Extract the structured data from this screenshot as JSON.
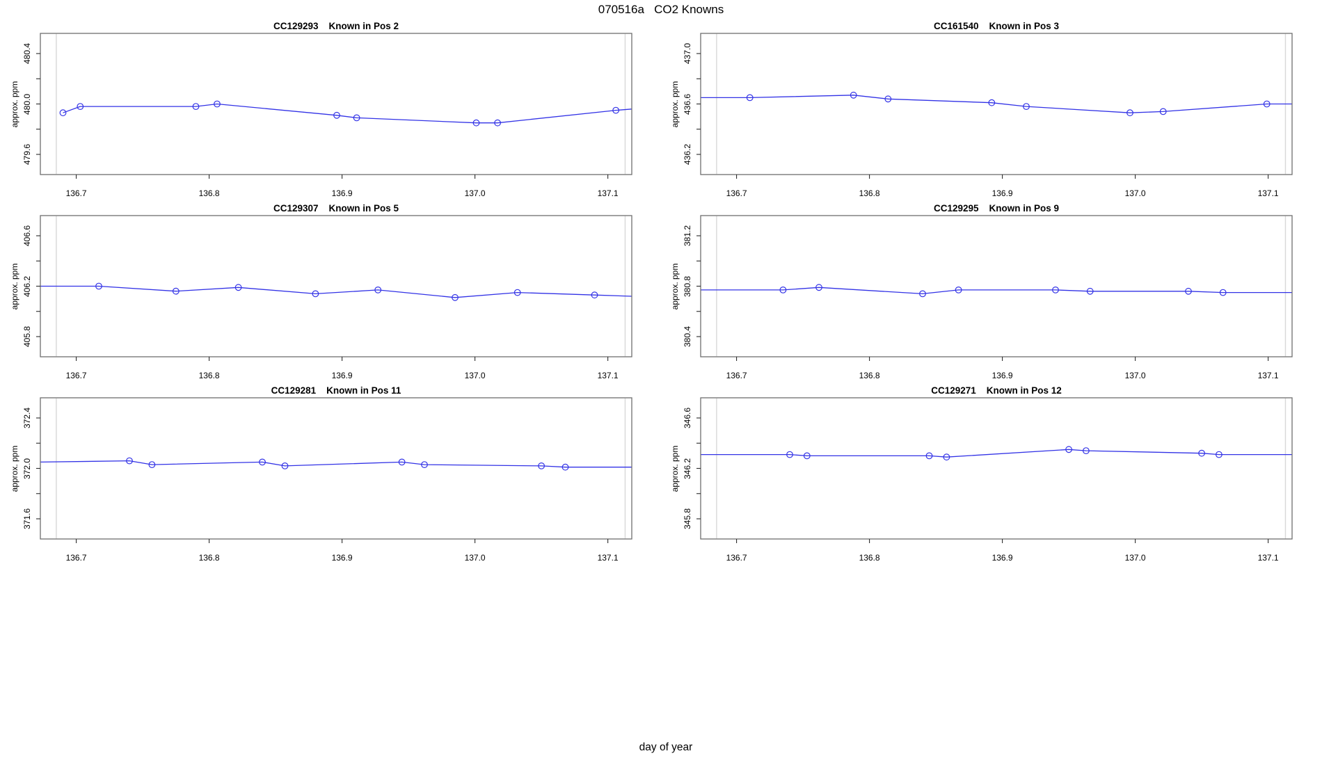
{
  "title": "070516a   CO2 Knowns",
  "xlabel": "day of year",
  "colors": {
    "series_blue": "#3232e6",
    "marker_blue": "#3232e6",
    "run_marker_gray": "#d8d8d8",
    "plot_box_gray": "#6e6e6e",
    "tick_black": "#2a2a2a",
    "text_black": "#000000",
    "background": "#ffffff"
  },
  "chart_data": [
    {
      "id": "pos2",
      "type": "line",
      "title": "CC129293    Known in Pos 2",
      "ylabel": "approx. ppm",
      "xlabel": "day of year",
      "legend": "none",
      "grid": "off",
      "xlim": [
        136.673,
        137.118
      ],
      "ylim": [
        479.44,
        480.56
      ],
      "xticks": [
        {
          "v": 136.7,
          "label": "136.7"
        },
        {
          "v": 136.8,
          "label": "136.8"
        },
        {
          "v": 136.9,
          "label": "136.9"
        },
        {
          "v": 137.0,
          "label": "137.0"
        },
        {
          "v": 137.1,
          "label": "137.1"
        }
      ],
      "yticks": [
        {
          "v": 479.6,
          "label": "479.6"
        },
        {
          "v": 479.8,
          "label": ""
        },
        {
          "v": 480.0,
          "label": "480.0"
        },
        {
          "v": 480.2,
          "label": ""
        },
        {
          "v": 480.4,
          "label": "480.4"
        }
      ],
      "vlines": [
        136.685,
        137.113
      ],
      "points": [
        [
          136.69,
          479.93
        ],
        [
          136.703,
          479.98
        ],
        [
          136.79,
          479.98
        ],
        [
          136.806,
          480.0
        ],
        [
          136.896,
          479.91
        ],
        [
          136.911,
          479.89
        ],
        [
          137.001,
          479.85
        ],
        [
          137.017,
          479.85
        ],
        [
          137.106,
          479.95
        ]
      ],
      "line": [
        [
          136.69,
          479.93
        ],
        [
          136.703,
          479.98
        ],
        [
          136.79,
          479.98
        ],
        [
          136.806,
          480.0
        ],
        [
          136.896,
          479.91
        ],
        [
          136.911,
          479.89
        ],
        [
          137.001,
          479.85
        ],
        [
          137.017,
          479.85
        ],
        [
          137.106,
          479.95
        ],
        [
          137.118,
          479.96
        ]
      ]
    },
    {
      "id": "pos3",
      "type": "line",
      "title": "CC161540    Known in Pos 3",
      "ylabel": "approx. ppm",
      "xlabel": "day of year",
      "legend": "none",
      "grid": "off",
      "xlim": [
        136.673,
        137.118
      ],
      "ylim": [
        436.04,
        437.16
      ],
      "xticks": [
        {
          "v": 136.7,
          "label": "136.7"
        },
        {
          "v": 136.8,
          "label": "136.8"
        },
        {
          "v": 136.9,
          "label": "136.9"
        },
        {
          "v": 137.0,
          "label": "137.0"
        },
        {
          "v": 137.1,
          "label": "137.1"
        }
      ],
      "yticks": [
        {
          "v": 436.2,
          "label": "436.2"
        },
        {
          "v": 436.4,
          "label": ""
        },
        {
          "v": 436.6,
          "label": "436.6"
        },
        {
          "v": 436.8,
          "label": ""
        },
        {
          "v": 437.0,
          "label": "437.0"
        }
      ],
      "vlines": [
        136.685,
        137.113
      ],
      "points": [
        [
          136.71,
          436.65
        ],
        [
          136.788,
          436.67
        ],
        [
          136.814,
          436.64
        ],
        [
          136.892,
          436.61
        ],
        [
          136.918,
          436.58
        ],
        [
          136.996,
          436.53
        ],
        [
          137.021,
          436.54
        ],
        [
          137.099,
          436.6
        ]
      ],
      "line": [
        [
          136.673,
          436.65
        ],
        [
          136.71,
          436.65
        ],
        [
          136.788,
          436.67
        ],
        [
          136.814,
          436.64
        ],
        [
          136.892,
          436.61
        ],
        [
          136.918,
          436.58
        ],
        [
          136.996,
          436.53
        ],
        [
          137.021,
          436.54
        ],
        [
          137.099,
          436.6
        ],
        [
          137.118,
          436.6
        ]
      ]
    },
    {
      "id": "pos5",
      "type": "line",
      "title": "CC129307    Known in Pos 5",
      "ylabel": "approx. ppm",
      "xlabel": "day of year",
      "legend": "none",
      "grid": "off",
      "xlim": [
        136.673,
        137.118
      ],
      "ylim": [
        405.64,
        406.76
      ],
      "xticks": [
        {
          "v": 136.7,
          "label": "136.7"
        },
        {
          "v": 136.8,
          "label": "136.8"
        },
        {
          "v": 136.9,
          "label": "136.9"
        },
        {
          "v": 137.0,
          "label": "137.0"
        },
        {
          "v": 137.1,
          "label": "137.1"
        }
      ],
      "yticks": [
        {
          "v": 405.8,
          "label": "405.8"
        },
        {
          "v": 406.0,
          "label": ""
        },
        {
          "v": 406.2,
          "label": "406.2"
        },
        {
          "v": 406.4,
          "label": ""
        },
        {
          "v": 406.6,
          "label": "406.6"
        }
      ],
      "vlines": [
        136.685,
        137.113
      ],
      "points": [
        [
          136.717,
          406.2
        ],
        [
          136.775,
          406.16
        ],
        [
          136.822,
          406.19
        ],
        [
          136.88,
          406.14
        ],
        [
          136.927,
          406.17
        ],
        [
          136.985,
          406.11
        ],
        [
          137.032,
          406.15
        ],
        [
          137.09,
          406.13
        ]
      ],
      "line": [
        [
          136.673,
          406.2
        ],
        [
          136.717,
          406.2
        ],
        [
          136.775,
          406.16
        ],
        [
          136.822,
          406.19
        ],
        [
          136.88,
          406.14
        ],
        [
          136.927,
          406.17
        ],
        [
          136.985,
          406.11
        ],
        [
          137.032,
          406.15
        ],
        [
          137.09,
          406.13
        ],
        [
          137.118,
          406.12
        ]
      ]
    },
    {
      "id": "pos9",
      "type": "line",
      "title": "CC129295    Known in Pos 9",
      "ylabel": "approx. ppm",
      "xlabel": "day of year",
      "legend": "none",
      "grid": "off",
      "xlim": [
        136.673,
        137.118
      ],
      "ylim": [
        380.24,
        381.36
      ],
      "xticks": [
        {
          "v": 136.7,
          "label": "136.7"
        },
        {
          "v": 136.8,
          "label": "136.8"
        },
        {
          "v": 136.9,
          "label": "136.9"
        },
        {
          "v": 137.0,
          "label": "137.0"
        },
        {
          "v": 137.1,
          "label": "137.1"
        }
      ],
      "yticks": [
        {
          "v": 380.4,
          "label": "380.4"
        },
        {
          "v": 380.6,
          "label": ""
        },
        {
          "v": 380.8,
          "label": "380.8"
        },
        {
          "v": 381.0,
          "label": ""
        },
        {
          "v": 381.2,
          "label": "381.2"
        }
      ],
      "vlines": [
        136.685,
        137.113
      ],
      "points": [
        [
          136.735,
          380.77
        ],
        [
          136.762,
          380.79
        ],
        [
          136.84,
          380.74
        ],
        [
          136.867,
          380.77
        ],
        [
          136.94,
          380.77
        ],
        [
          136.966,
          380.76
        ],
        [
          137.04,
          380.76
        ],
        [
          137.066,
          380.75
        ]
      ],
      "line": [
        [
          136.673,
          380.77
        ],
        [
          136.735,
          380.77
        ],
        [
          136.762,
          380.79
        ],
        [
          136.84,
          380.74
        ],
        [
          136.867,
          380.77
        ],
        [
          136.94,
          380.77
        ],
        [
          136.966,
          380.76
        ],
        [
          137.04,
          380.76
        ],
        [
          137.066,
          380.75
        ],
        [
          137.118,
          380.75
        ]
      ]
    },
    {
      "id": "pos11",
      "type": "line",
      "title": "CC129281    Known in Pos 11",
      "ylabel": "approx. ppm",
      "xlabel": "day of year",
      "legend": "none",
      "grid": "off",
      "xlim": [
        136.673,
        137.118
      ],
      "ylim": [
        371.44,
        372.56
      ],
      "xticks": [
        {
          "v": 136.7,
          "label": "136.7"
        },
        {
          "v": 136.8,
          "label": "136.8"
        },
        {
          "v": 136.9,
          "label": "136.9"
        },
        {
          "v": 137.0,
          "label": "137.0"
        },
        {
          "v": 137.1,
          "label": "137.1"
        }
      ],
      "yticks": [
        {
          "v": 371.6,
          "label": "371.6"
        },
        {
          "v": 371.8,
          "label": ""
        },
        {
          "v": 372.0,
          "label": "372.0"
        },
        {
          "v": 372.2,
          "label": ""
        },
        {
          "v": 372.4,
          "label": "372.4"
        }
      ],
      "vlines": [
        136.685,
        137.113
      ],
      "points": [
        [
          136.74,
          372.06
        ],
        [
          136.757,
          372.03
        ],
        [
          136.84,
          372.05
        ],
        [
          136.857,
          372.02
        ],
        [
          136.945,
          372.05
        ],
        [
          136.962,
          372.03
        ],
        [
          137.05,
          372.02
        ],
        [
          137.068,
          372.01
        ]
      ],
      "line": [
        [
          136.673,
          372.05
        ],
        [
          136.74,
          372.06
        ],
        [
          136.757,
          372.03
        ],
        [
          136.84,
          372.05
        ],
        [
          136.857,
          372.02
        ],
        [
          136.945,
          372.05
        ],
        [
          136.962,
          372.03
        ],
        [
          137.05,
          372.02
        ],
        [
          137.068,
          372.01
        ],
        [
          137.118,
          372.01
        ]
      ]
    },
    {
      "id": "pos12",
      "type": "line",
      "title": "CC129271    Known in Pos 12",
      "ylabel": "approx. ppm",
      "xlabel": "day of year",
      "legend": "none",
      "grid": "off",
      "xlim": [
        136.673,
        137.118
      ],
      "ylim": [
        345.64,
        346.76
      ],
      "xticks": [
        {
          "v": 136.7,
          "label": "136.7"
        },
        {
          "v": 136.8,
          "label": "136.8"
        },
        {
          "v": 136.9,
          "label": "136.9"
        },
        {
          "v": 137.0,
          "label": "137.0"
        },
        {
          "v": 137.1,
          "label": "137.1"
        }
      ],
      "yticks": [
        {
          "v": 345.8,
          "label": "345.8"
        },
        {
          "v": 346.0,
          "label": ""
        },
        {
          "v": 346.2,
          "label": "346.2"
        },
        {
          "v": 346.4,
          "label": ""
        },
        {
          "v": 346.6,
          "label": "346.6"
        }
      ],
      "vlines": [
        136.685,
        137.113
      ],
      "points": [
        [
          136.74,
          346.31
        ],
        [
          136.753,
          346.3
        ],
        [
          136.845,
          346.3
        ],
        [
          136.858,
          346.29
        ],
        [
          136.95,
          346.35
        ],
        [
          136.963,
          346.34
        ],
        [
          137.05,
          346.32
        ],
        [
          137.063,
          346.31
        ]
      ],
      "line": [
        [
          136.673,
          346.31
        ],
        [
          136.74,
          346.31
        ],
        [
          136.753,
          346.3
        ],
        [
          136.845,
          346.3
        ],
        [
          136.858,
          346.29
        ],
        [
          136.95,
          346.35
        ],
        [
          136.963,
          346.34
        ],
        [
          137.05,
          346.32
        ],
        [
          137.063,
          346.31
        ],
        [
          137.118,
          346.31
        ]
      ]
    }
  ]
}
